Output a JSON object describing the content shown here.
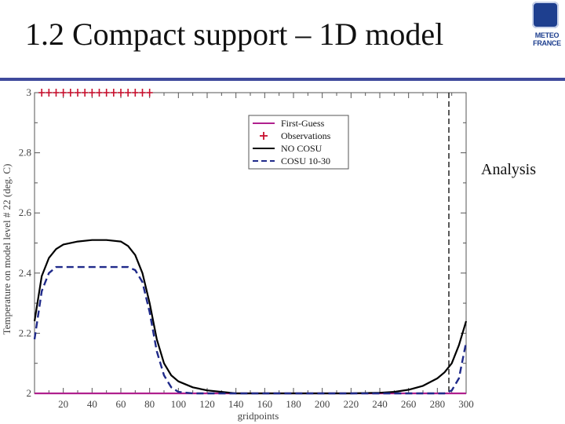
{
  "slide": {
    "title": "1.2 Compact support – 1D model",
    "side_label": "Analysis",
    "logo": {
      "line1": "METEO",
      "line2": "FRANCE"
    }
  },
  "colors": {
    "rule": "#3f4a9c",
    "first_guess": "#b0208e",
    "observations": "#c8102e",
    "no_cosu": "#000000",
    "cosu": "#1f2a8a"
  },
  "chart_data": {
    "type": "line",
    "title": "",
    "xlabel": "gridpoints",
    "ylabel": "Temperature on model level # 22 (deg. C)",
    "xlim": [
      0,
      300
    ],
    "ylim": [
      2,
      3
    ],
    "xticks": [
      20,
      40,
      60,
      80,
      100,
      120,
      140,
      160,
      180,
      200,
      220,
      240,
      260,
      280,
      300
    ],
    "yticks": [
      2,
      2.2,
      2.4,
      2.6,
      2.8,
      3
    ],
    "ytick_labels": [
      "2",
      "2.2",
      "2.4",
      "2.6",
      "2.8",
      "3"
    ],
    "legend_position": "top-center",
    "grid": false,
    "vertical_dashed_line_x": 288,
    "series": [
      {
        "name": "First-Guess",
        "style": "solid",
        "x": [
          0,
          300
        ],
        "y": [
          2.0,
          2.0
        ]
      },
      {
        "name": "Observations",
        "style": "plus-markers",
        "x": [
          5,
          10,
          15,
          20,
          25,
          30,
          35,
          40,
          45,
          50,
          55,
          60,
          65,
          70,
          75,
          80
        ],
        "y": [
          3,
          3,
          3,
          3,
          3,
          3,
          3,
          3,
          3,
          3,
          3,
          3,
          3,
          3,
          3,
          3
        ]
      },
      {
        "name": "NO COSU",
        "style": "solid",
        "x": [
          0,
          5,
          10,
          15,
          20,
          30,
          40,
          50,
          60,
          65,
          70,
          75,
          80,
          85,
          90,
          95,
          100,
          110,
          120,
          130,
          140,
          160,
          180,
          200,
          220,
          240,
          250,
          260,
          270,
          280,
          285,
          290,
          295,
          300
        ],
        "y": [
          2.24,
          2.39,
          2.45,
          2.48,
          2.495,
          2.505,
          2.51,
          2.51,
          2.505,
          2.49,
          2.46,
          2.4,
          2.3,
          2.18,
          2.1,
          2.06,
          2.04,
          2.02,
          2.01,
          2.005,
          2.0,
          2.0,
          2.0,
          2.0,
          2.0,
          2.002,
          2.005,
          2.012,
          2.025,
          2.05,
          2.07,
          2.1,
          2.16,
          2.24
        ]
      },
      {
        "name": "COSU 10-30",
        "style": "dashed",
        "x": [
          0,
          5,
          10,
          15,
          20,
          30,
          40,
          50,
          60,
          65,
          70,
          75,
          80,
          85,
          90,
          95,
          100,
          110,
          120,
          140,
          160,
          180,
          200,
          220,
          240,
          260,
          280,
          285,
          290,
          295,
          300
        ],
        "y": [
          2.18,
          2.34,
          2.4,
          2.42,
          2.42,
          2.42,
          2.42,
          2.42,
          2.42,
          2.42,
          2.41,
          2.37,
          2.27,
          2.14,
          2.06,
          2.02,
          2.005,
          2.0,
          2.0,
          2.0,
          2.0,
          2.0,
          2.0,
          2.0,
          2.0,
          2.0,
          2.0,
          2.0,
          2.01,
          2.05,
          2.17
        ]
      }
    ]
  }
}
